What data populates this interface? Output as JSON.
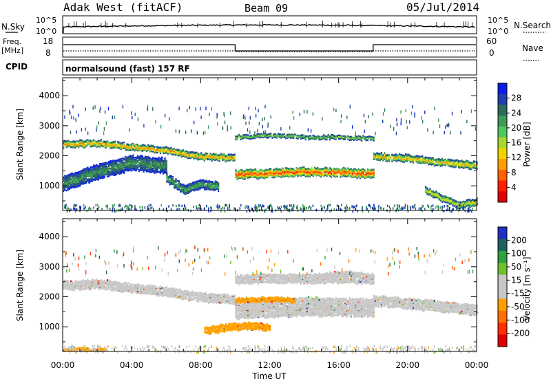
{
  "header": {
    "station": "Adak West (fitACF)",
    "beam": "Beam 09",
    "date": "05/Jul/2014"
  },
  "status_panels": {
    "nsky": {
      "label": "N.Sky",
      "ticks": [
        "10^5",
        "10^0"
      ]
    },
    "nsearch": {
      "label": "N.Search",
      "ticks": [
        "10^5",
        "10^0"
      ]
    },
    "freq": {
      "label_top": "Freq.",
      "label_unit": "[MHz]",
      "ticks": [
        "18",
        "8"
      ]
    },
    "nave": {
      "label": "Nave",
      "ticks": [
        "60",
        "0"
      ]
    },
    "cpid": {
      "label": "CPID",
      "value": "normalsound (fast) 157 RF"
    }
  },
  "colors": {
    "power": [
      "#0a1ee8",
      "#2040b0",
      "#2e6c5a",
      "#3e9a55",
      "#50c860",
      "#a8d830",
      "#f0d400",
      "#ffa000",
      "#ff6000",
      "#ff2000",
      "#e00000"
    ],
    "velocity": [
      "#2030c0",
      "#1e6060",
      "#30a040",
      "#70c030",
      "#c8c8c8",
      "#c8c8c8",
      "#ffa000",
      "#ff7000",
      "#ff3000",
      "#e00000"
    ]
  },
  "power_scale": {
    "label": "Power [dB]",
    "ticks": [
      "28",
      "24",
      "20",
      "16",
      "12",
      "8",
      "4"
    ]
  },
  "velocity_scale": {
    "label": "Velocity [m s⁻¹]",
    "ticks": [
      "200",
      "100",
      "50",
      "15",
      "-15",
      "-50",
      "-100",
      "-200"
    ]
  },
  "chart_data": [
    {
      "type": "heatmap",
      "title": "Power",
      "xlabel": "Time UT",
      "ylabel": "Slant Range [km]",
      "x_ticks": [
        "00:00",
        "04:00",
        "08:00",
        "12:00",
        "16:00",
        "20:00",
        "00:00"
      ],
      "y_ticks": [
        "4000",
        "3000",
        "2000",
        "1000"
      ],
      "xlim_hours": [
        0,
        24
      ],
      "ylim_km": [
        180,
        4600
      ],
      "colorbar": "Power [dB]",
      "clim": [
        0,
        32
      ],
      "bands": [
        {
          "x": [
            0,
            2.0,
            4.0,
            6.0,
            8.0,
            10.0
          ],
          "center": [
            2400,
            2450,
            2320,
            2200,
            2000,
            1950
          ],
          "width": 200,
          "peak": 24
        },
        {
          "x": [
            10.0,
            12.0,
            14.0,
            16.0,
            18.0
          ],
          "center": [
            1400,
            1450,
            1500,
            1480,
            1420
          ],
          "width": 280,
          "peak": 28
        },
        {
          "x": [
            10.0,
            12.0,
            14.0,
            16.0,
            18.0
          ],
          "center": [
            2650,
            2700,
            2650,
            2650,
            2600
          ],
          "width": 120,
          "peak": 16
        },
        {
          "x": [
            18.0,
            20.0,
            22.0,
            24.0
          ],
          "center": [
            2000,
            1950,
            1800,
            1700
          ],
          "width": 220,
          "peak": 22
        },
        {
          "x": [
            0,
            2.0,
            4.0,
            6.0
          ],
          "center": [
            1100,
            1500,
            1800,
            1700
          ],
          "width": 500,
          "peak": 10
        },
        {
          "x": [
            6.0,
            7.0,
            8.0,
            9.0
          ],
          "center": [
            1300,
            900,
            1100,
            1000
          ],
          "width": 300,
          "peak": 12
        },
        {
          "x": [
            21.0,
            22.0,
            23.0,
            24.0
          ],
          "center": [
            900,
            600,
            400,
            500
          ],
          "width": 200,
          "peak": 20
        }
      ]
    },
    {
      "type": "heatmap",
      "title": "Velocity",
      "xlabel": "Time UT",
      "ylabel": "Slant Range [km]",
      "x_ticks": [
        "00:00",
        "04:00",
        "08:00",
        "12:00",
        "16:00",
        "20:00",
        "00:00"
      ],
      "y_ticks": [
        "4000",
        "3000",
        "2000",
        "1000"
      ],
      "xlim_hours": [
        0,
        24
      ],
      "ylim_km": [
        180,
        4600
      ],
      "colorbar": "Velocity [m s⁻¹]",
      "clim": [
        -250,
        250
      ],
      "bands": [
        {
          "x": [
            0,
            2.0,
            4.0,
            6.0,
            8.0,
            10.0
          ],
          "center": [
            2400,
            2450,
            2320,
            2200,
            2000,
            1950
          ],
          "width": 300,
          "velocity": 0
        },
        {
          "x": [
            10.0,
            14.0,
            18.0
          ],
          "center": [
            1600,
            1700,
            1650
          ],
          "width": 600,
          "velocity": 0
        },
        {
          "x": [
            10.0,
            12.0,
            14.0,
            16.0,
            18.0
          ],
          "center": [
            2600,
            2650,
            2620,
            2650,
            2600
          ],
          "width": 300,
          "velocity": 0
        },
        {
          "x": [
            10.0,
            12.0,
            13.5
          ],
          "center": [
            1900,
            1950,
            1900
          ],
          "width": 140,
          "velocity": -60
        },
        {
          "x": [
            8.2,
            9.5,
            11.0,
            12.0
          ],
          "center": [
            900,
            1000,
            1050,
            1000
          ],
          "width": 220,
          "velocity": -70
        },
        {
          "x": [
            14.5,
            16.5,
            18.0
          ],
          "center": [
            2700,
            2800,
            2700
          ],
          "width": 160,
          "velocity": 40
        },
        {
          "x": [
            18.0,
            20.0,
            22.0,
            24.0
          ],
          "center": [
            1900,
            1800,
            1700,
            1600
          ],
          "width": 350,
          "velocity": 0
        },
        {
          "x": [
            0,
            2.5
          ],
          "center": [
            250,
            250
          ],
          "width": 120,
          "velocity": -60
        }
      ]
    }
  ]
}
